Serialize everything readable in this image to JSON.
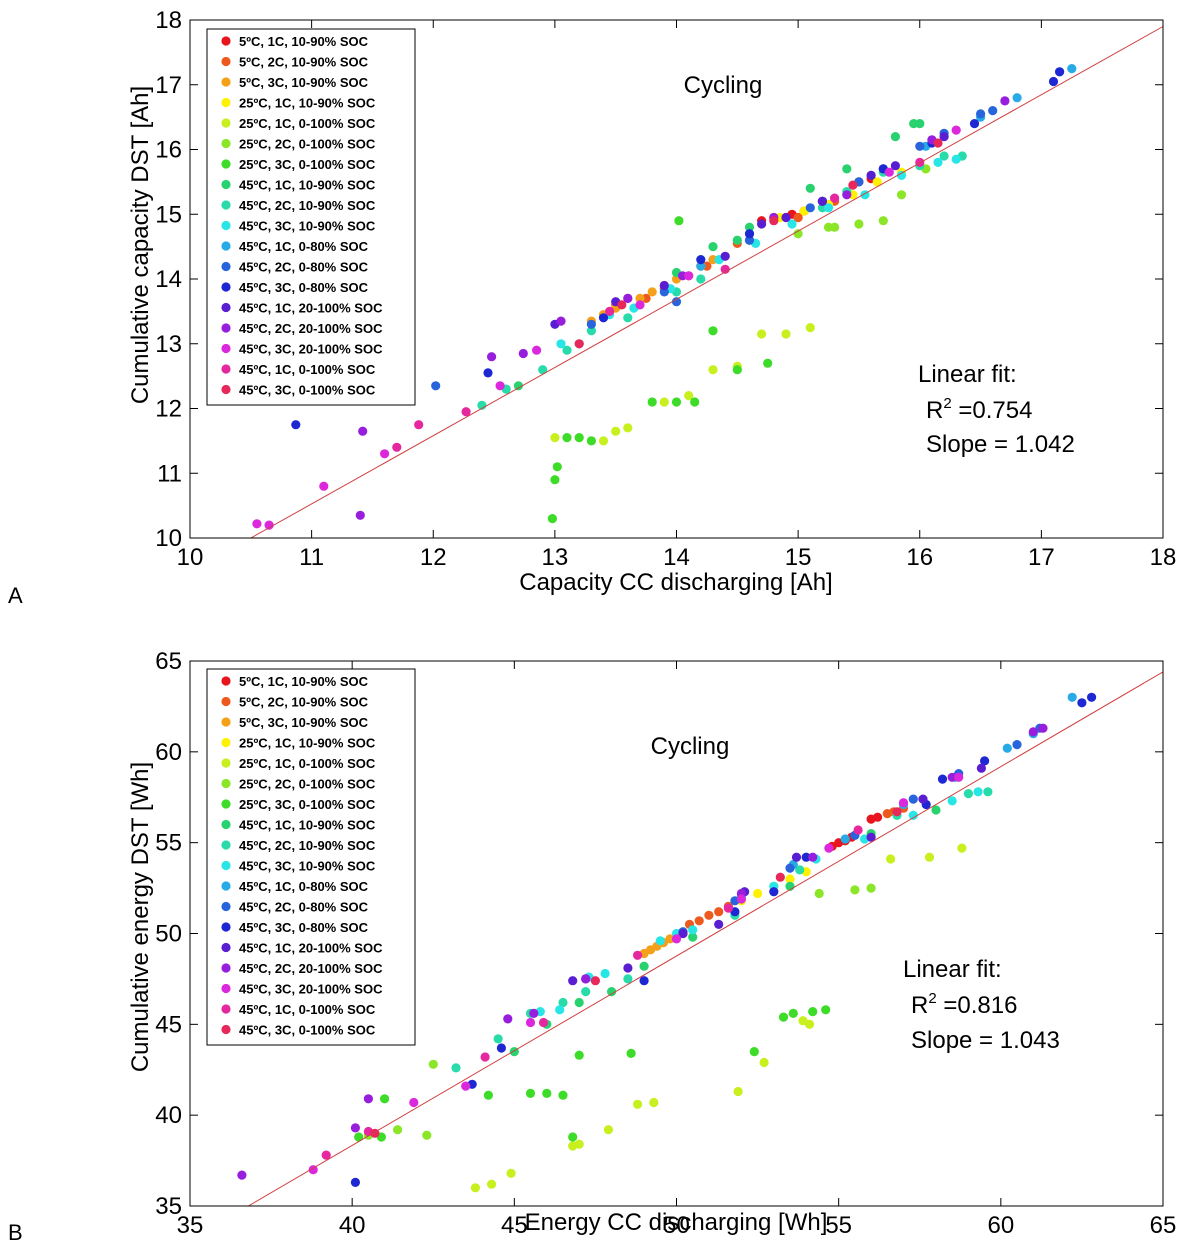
{
  "series_names": [
    "5ºC, 1C, 10-90% SOC",
    "5ºC, 2C, 10-90% SOC",
    "5ºC, 3C, 10-90% SOC",
    "25ºC, 1C, 10-90% SOC",
    "25ºC, 1C, 0-100% SOC",
    "25ºC, 2C, 0-100% SOC",
    "25ºC, 3C, 0-100% SOC",
    "45ºC, 1C, 10-90% SOC",
    "45ºC, 2C, 10-90% SOC",
    "45ºC, 3C, 10-90% SOC",
    "45ºC, 1C, 0-80% SOC",
    "45ºC, 2C, 0-80% SOC",
    "45ºC, 3C, 0-80% SOC",
    "45ºC, 1C, 20-100% SOC",
    "45ºC, 2C, 20-100% SOC",
    "45ºC, 3C, 20-100% SOC",
    "45ºC, 1C, 0-100% SOC",
    "45ºC, 3C, 0-100% SOC"
  ],
  "series_colors": [
    "#e8141e",
    "#ee5a1e",
    "#f5a01a",
    "#fff200",
    "#c8f01e",
    "#8ce628",
    "#3cdc28",
    "#28d26e",
    "#28dcaa",
    "#28e6e6",
    "#28aae6",
    "#2864dc",
    "#1e28d2",
    "#5a1ed2",
    "#961edc",
    "#dc28dc",
    "#e628a0",
    "#e6285a"
  ],
  "fit_line_color": "#d04040",
  "panels": [
    {
      "label": "A",
      "annotation": "Cycling",
      "fit_title": "Linear fit:",
      "r2_prefix": "R",
      "r2_sup": "2",
      "r2_value": " =0.754",
      "slope": "Slope = 1.042"
    },
    {
      "label": "B",
      "annotation": "Cycling",
      "fit_title": "Linear fit:",
      "r2_prefix": "R",
      "r2_sup": "2",
      "r2_value": " =0.816",
      "slope": "Slope = 1.043"
    }
  ],
  "chart_data": [
    {
      "type": "scatter",
      "title": "",
      "xlabel": "Capacity CC discharging [Ah]",
      "ylabel": "Cumulative capacity DST [Ah]",
      "xlim": [
        10,
        18
      ],
      "ylim": [
        10,
        18
      ],
      "xticks": [
        10,
        11,
        12,
        13,
        14,
        15,
        16,
        17,
        18
      ],
      "yticks": [
        10,
        11,
        12,
        13,
        14,
        15,
        16,
        17,
        18
      ],
      "grid": false,
      "legend_position": "top-left",
      "fit": {
        "slope": 1.042,
        "x": [
          10.5,
          18
        ],
        "y": [
          10.0,
          17.9
        ]
      },
      "series": [
        {
          "name": "5ºC, 1C, 10-90% SOC",
          "x": [
            14.8,
            14.95,
            15.0,
            15.05,
            15.2,
            15.5,
            15.6,
            14.7,
            14.9
          ],
          "y": [
            14.95,
            15.0,
            14.95,
            15.05,
            15.2,
            15.5,
            15.55,
            14.9,
            14.95
          ]
        },
        {
          "name": "5ºC, 2C, 10-90% SOC",
          "x": [
            13.5,
            13.6,
            13.75,
            13.9,
            14.1,
            14.25,
            14.5,
            14.6,
            15.0,
            15.3
          ],
          "y": [
            13.6,
            13.7,
            13.7,
            13.85,
            14.05,
            14.2,
            14.55,
            14.6,
            14.95,
            15.2
          ]
        },
        {
          "name": "5ºC, 3C, 10-90% SOC",
          "x": [
            13.3,
            13.4,
            13.5,
            13.7,
            13.8,
            13.9,
            14.0,
            14.2,
            14.3
          ],
          "y": [
            13.35,
            13.45,
            13.55,
            13.7,
            13.8,
            13.9,
            14.0,
            14.2,
            14.3
          ]
        },
        {
          "name": "25ºC, 1C, 10-90% SOC",
          "x": [
            14.85,
            15.05,
            15.25,
            15.45,
            15.65,
            15.85,
            16.05
          ],
          "y": [
            14.95,
            15.05,
            15.15,
            15.3,
            15.5,
            15.65,
            15.7
          ]
        },
        {
          "name": "25ºC, 1C, 0-100% SOC",
          "x": [
            13.0,
            13.4,
            13.6,
            13.9,
            14.1,
            14.3,
            14.5,
            14.7,
            14.9,
            15.1,
            13.5
          ],
          "y": [
            11.55,
            11.5,
            11.7,
            12.1,
            12.2,
            12.6,
            12.65,
            13.15,
            13.15,
            13.25,
            11.65
          ]
        },
        {
          "name": "25ºC, 2C, 0-100% SOC",
          "x": [
            15.3,
            15.5,
            15.7,
            15.85,
            16.05,
            15.0,
            15.25
          ],
          "y": [
            14.8,
            14.85,
            14.9,
            15.3,
            15.7,
            14.7,
            14.8
          ]
        },
        {
          "name": "25ºC, 3C, 0-100% SOC",
          "x": [
            12.98,
            13.0,
            13.02,
            13.1,
            13.2,
            13.3,
            13.8,
            14.0,
            14.15,
            14.5,
            14.75,
            14.02,
            14.3
          ],
          "y": [
            10.3,
            10.9,
            11.1,
            11.55,
            11.55,
            11.5,
            12.1,
            12.1,
            12.1,
            12.6,
            12.7,
            14.9,
            13.2
          ]
        },
        {
          "name": "45ºC, 1C, 10-90% SOC",
          "x": [
            12.7,
            13.2,
            14.0,
            14.3,
            15.1,
            15.4,
            15.8,
            15.95,
            16.0,
            14.5,
            14.6
          ],
          "y": [
            12.35,
            13.0,
            14.1,
            14.5,
            15.4,
            15.7,
            16.2,
            16.4,
            16.4,
            14.6,
            14.8
          ]
        },
        {
          "name": "45ºC, 2C, 10-90% SOC",
          "x": [
            12.4,
            12.6,
            12.9,
            13.1,
            13.3,
            13.6,
            14.0,
            14.2,
            14.6,
            15.2,
            15.4,
            15.7,
            16.0,
            16.2,
            16.35
          ],
          "y": [
            12.05,
            12.3,
            12.6,
            12.9,
            13.2,
            13.4,
            13.8,
            14.0,
            14.6,
            15.1,
            15.35,
            15.65,
            15.75,
            15.9,
            15.9
          ]
        },
        {
          "name": "45ºC, 3C, 10-90% SOC",
          "x": [
            13.05,
            13.45,
            13.65,
            13.95,
            14.35,
            14.65,
            14.95,
            15.25,
            15.55,
            15.85,
            16.15,
            16.3
          ],
          "y": [
            13.0,
            13.45,
            13.55,
            13.85,
            14.3,
            14.55,
            14.85,
            15.1,
            15.3,
            15.6,
            15.8,
            15.85
          ]
        },
        {
          "name": "45ºC, 1C, 0-80% SOC",
          "x": [
            14.2,
            14.6,
            15.2,
            15.6,
            16.05,
            16.5,
            16.8,
            17.15,
            17.25
          ],
          "y": [
            14.2,
            14.7,
            15.2,
            15.6,
            16.05,
            16.5,
            16.8,
            17.2,
            17.25
          ]
        },
        {
          "name": "45ºC, 2C, 0-80% SOC",
          "x": [
            12.02,
            13.3,
            13.9,
            14.6,
            15.1,
            15.5,
            16.0,
            16.2,
            16.5,
            16.6,
            14.0,
            15.7
          ],
          "y": [
            12.35,
            13.3,
            13.8,
            14.6,
            15.1,
            15.5,
            16.05,
            16.25,
            16.55,
            16.6,
            13.65,
            15.7
          ]
        },
        {
          "name": "45ºC, 3C, 0-80% SOC",
          "x": [
            10.87,
            12.45,
            13.4,
            14.2,
            14.6,
            15.2,
            15.7,
            16.1,
            16.45,
            17.1,
            17.15
          ],
          "y": [
            11.75,
            12.55,
            13.4,
            14.3,
            14.7,
            15.2,
            15.7,
            16.1,
            16.4,
            17.05,
            17.2
          ]
        },
        {
          "name": "45ºC, 1C, 20-100% SOC",
          "x": [
            13.0,
            13.5,
            13.9,
            14.4,
            14.7,
            14.9,
            15.2,
            15.6,
            15.8,
            16.2
          ],
          "y": [
            13.3,
            13.65,
            13.9,
            14.35,
            14.85,
            14.95,
            15.2,
            15.6,
            15.75,
            16.2
          ]
        },
        {
          "name": "45ºC, 2C, 20-100% SOC",
          "x": [
            11.4,
            11.42,
            12.48,
            12.74,
            13.05,
            13.6,
            14.05,
            14.8,
            15.4,
            16.1,
            16.7
          ],
          "y": [
            10.35,
            11.65,
            12.8,
            12.85,
            13.35,
            13.7,
            14.05,
            14.95,
            15.3,
            16.15,
            16.75
          ]
        },
        {
          "name": "45ºC, 3C, 20-100% SOC",
          "x": [
            10.55,
            10.65,
            11.1,
            11.6,
            12.55,
            12.85,
            13.7,
            14.1,
            15.75,
            16.3
          ],
          "y": [
            10.22,
            10.2,
            10.8,
            11.3,
            12.35,
            12.9,
            13.6,
            14.05,
            15.65,
            16.3
          ]
        },
        {
          "name": "45ºC, 1C, 0-100% SOC",
          "x": [
            11.7,
            11.88,
            12.27,
            13.45,
            14.4,
            15.3,
            16.0
          ],
          "y": [
            11.4,
            11.75,
            11.95,
            13.5,
            14.15,
            15.25,
            15.8
          ]
        },
        {
          "name": "45ºC, 3C, 0-100% SOC",
          "x": [
            13.2,
            13.55,
            14.8,
            15.45,
            16.15
          ],
          "y": [
            13.0,
            13.6,
            14.9,
            15.45,
            16.1
          ]
        }
      ]
    },
    {
      "type": "scatter",
      "title": "",
      "xlabel": "Energy CC discharging [Wh]",
      "ylabel": "Cumulative energy DST [Wh]",
      "xlim": [
        35,
        65
      ],
      "ylim": [
        35,
        65
      ],
      "xticks": [
        35,
        40,
        45,
        50,
        55,
        60,
        65
      ],
      "yticks": [
        35,
        40,
        45,
        50,
        55,
        60,
        65
      ],
      "grid": false,
      "legend_position": "top-left",
      "fit": {
        "slope": 1.043,
        "x": [
          36.8,
          65
        ],
        "y": [
          35.0,
          64.4
        ]
      },
      "series": [
        {
          "name": "5ºC, 1C, 10-90% SOC",
          "x": [
            54.8,
            55.0,
            55.2,
            55.4,
            56.0,
            56.2
          ],
          "y": [
            54.8,
            55.0,
            55.1,
            55.3,
            56.3,
            56.4
          ]
        },
        {
          "name": "5ºC, 2C, 10-90% SOC",
          "x": [
            50.4,
            50.7,
            51.0,
            51.3,
            51.6,
            56.5,
            56.7,
            57.0
          ],
          "y": [
            50.5,
            50.7,
            51.0,
            51.2,
            51.5,
            56.6,
            56.7,
            56.9
          ]
        },
        {
          "name": "5ºC, 3C, 10-90% SOC",
          "x": [
            49.0,
            49.2,
            49.4,
            49.6,
            49.8,
            50.0,
            50.2
          ],
          "y": [
            48.9,
            49.1,
            49.3,
            49.5,
            49.7,
            49.8,
            50.0
          ]
        },
        {
          "name": "25ºC, 1C, 10-90% SOC",
          "x": [
            52.0,
            52.5,
            53.0,
            53.5,
            54.0
          ],
          "y": [
            51.8,
            52.2,
            52.6,
            53.0,
            53.4
          ]
        },
        {
          "name": "25ºC, 1C, 0-100% SOC",
          "x": [
            43.8,
            44.3,
            44.9,
            46.8,
            47.0,
            47.9,
            48.8,
            49.3,
            51.9,
            52.7,
            53.9,
            54.1,
            57.8,
            58.8,
            56.6
          ],
          "y": [
            36.0,
            36.2,
            36.8,
            38.3,
            38.4,
            39.2,
            40.6,
            40.7,
            41.3,
            42.9,
            45.2,
            45.0,
            54.2,
            54.7,
            54.1
          ]
        },
        {
          "name": "25ºC, 2C, 0-100% SOC",
          "x": [
            40.5,
            41.4,
            42.3,
            42.5,
            54.4,
            55.5,
            56.0
          ],
          "y": [
            38.9,
            39.2,
            38.9,
            42.8,
            52.2,
            52.4,
            52.5
          ]
        },
        {
          "name": "25ºC, 3C, 0-100% SOC",
          "x": [
            40.2,
            40.9,
            41.0,
            44.2,
            45.5,
            46.0,
            46.5,
            46.8,
            47.0,
            48.6,
            52.4,
            53.3,
            53.6,
            54.2,
            54.6
          ],
          "y": [
            38.8,
            38.8,
            40.9,
            41.1,
            41.2,
            41.2,
            41.1,
            38.8,
            43.3,
            43.4,
            43.5,
            45.4,
            45.6,
            45.7,
            45.8
          ]
        },
        {
          "name": "45ºC, 1C, 10-90% SOC",
          "x": [
            45.0,
            46.0,
            47.0,
            48.0,
            49.0,
            50.5,
            53.5,
            56.0,
            58.0
          ],
          "y": [
            43.5,
            45.0,
            46.2,
            46.8,
            48.2,
            49.8,
            52.6,
            55.5,
            56.8
          ]
        },
        {
          "name": "45ºC, 2C, 10-90% SOC",
          "x": [
            43.2,
            44.5,
            45.5,
            46.5,
            47.2,
            48.5,
            51.8,
            53.8,
            56.8,
            59.0,
            59.6
          ],
          "y": [
            42.6,
            44.2,
            45.6,
            46.2,
            46.8,
            47.5,
            51.0,
            53.5,
            56.5,
            57.7,
            57.8
          ]
        },
        {
          "name": "45ºC, 3C, 10-90% SOC",
          "x": [
            45.8,
            46.4,
            47.3,
            47.8,
            49.5,
            50.0,
            50.5,
            53.0,
            54.3,
            55.8,
            57.3,
            58.5,
            59.3
          ],
          "y": [
            45.7,
            45.8,
            47.6,
            47.8,
            49.6,
            50.0,
            50.2,
            52.6,
            54.1,
            55.2,
            56.5,
            57.3,
            57.8
          ]
        },
        {
          "name": "45ºC, 1C, 0-80% SOC",
          "x": [
            52.0,
            53.6,
            55.2,
            57.0,
            58.6,
            60.2,
            61.0,
            62.2
          ],
          "y": [
            52.0,
            53.8,
            55.2,
            57.1,
            58.6,
            60.2,
            61.0,
            63.0
          ]
        },
        {
          "name": "45ºC, 2C, 0-80% SOC",
          "x": [
            50.2,
            51.8,
            53.5,
            55.5,
            57.3,
            58.7,
            60.5,
            61.2
          ],
          "y": [
            50.1,
            51.8,
            53.6,
            55.4,
            57.4,
            58.8,
            60.4,
            61.3
          ]
        },
        {
          "name": "45ºC, 3C, 0-80% SOC",
          "x": [
            40.1,
            43.7,
            44.6,
            49.0,
            51.8,
            53.0,
            54.0,
            57.7,
            58.2,
            59.5,
            62.5,
            62.8
          ],
          "y": [
            36.3,
            41.7,
            43.7,
            47.4,
            51.2,
            52.3,
            54.2,
            57.1,
            58.5,
            59.5,
            62.7,
            63.0
          ]
        },
        {
          "name": "45ºC, 1C, 20-100% SOC",
          "x": [
            46.8,
            47.2,
            48.5,
            50.2,
            51.3,
            52.1,
            53.7,
            56.0,
            57.6,
            59.4
          ],
          "y": [
            47.4,
            47.5,
            48.1,
            50.0,
            50.5,
            52.3,
            54.2,
            55.3,
            57.4,
            59.1
          ]
        },
        {
          "name": "45ºC, 2C, 20-100% SOC",
          "x": [
            36.6,
            40.1,
            40.5,
            44.8,
            45.6,
            47.2,
            52.0,
            54.2,
            58.5,
            61.0,
            61.3
          ],
          "y": [
            36.7,
            39.3,
            40.9,
            45.3,
            45.6,
            47.5,
            52.2,
            54.2,
            58.6,
            61.1,
            61.3
          ]
        },
        {
          "name": "45ºC, 3C, 20-100% SOC",
          "x": [
            38.8,
            41.9,
            43.5,
            45.5,
            50.0,
            52.0,
            54.7,
            57.0,
            58.7
          ],
          "y": [
            37.0,
            40.7,
            41.6,
            45.1,
            49.7,
            51.9,
            54.7,
            57.2,
            58.6
          ]
        },
        {
          "name": "45ºC, 1C, 0-100% SOC",
          "x": [
            39.2,
            40.5,
            44.1,
            45.9,
            48.8,
            51.6,
            55.6
          ],
          "y": [
            37.8,
            39.1,
            43.2,
            45.1,
            48.8,
            51.4,
            55.7
          ]
        },
        {
          "name": "45ºC, 3C, 0-100% SOC",
          "x": [
            40.7,
            47.5,
            53.2,
            56.8
          ],
          "y": [
            39.0,
            47.4,
            53.1,
            56.7
          ]
        }
      ]
    }
  ]
}
